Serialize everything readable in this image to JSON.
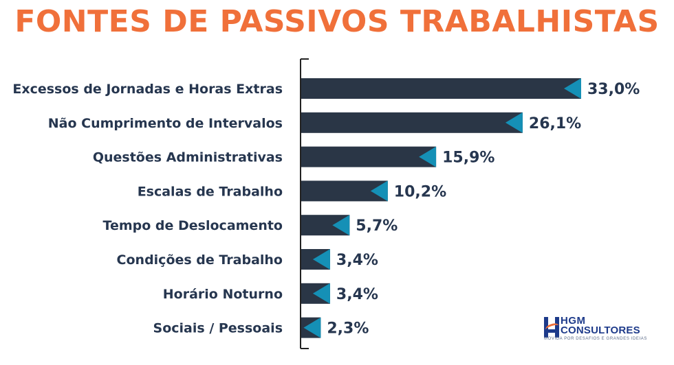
{
  "chart_data": {
    "type": "bar",
    "orientation": "horizontal",
    "title": "FONTES DE PASSIVOS TRABALHISTAS",
    "categories": [
      "Excessos de Jornadas e Horas Extras",
      "Não Cumprimento de Intervalos",
      "Questões Administrativas",
      "Escalas de Trabalho",
      "Tempo de Deslocamento",
      "Condições de Trabalho",
      "Horário Noturno",
      "Sociais / Pessoais"
    ],
    "values": [
      33.0,
      26.1,
      15.9,
      10.2,
      5.7,
      3.4,
      3.4,
      2.3
    ],
    "value_labels": [
      "33,0%",
      "26,1%",
      "15,9%",
      "10,2%",
      "5,7%",
      "3,4%",
      "3,4%",
      "2,3%"
    ],
    "xlim": [
      0,
      33.0
    ],
    "grid": false,
    "legend": "none",
    "colors": {
      "bar": "#2a3646",
      "marker": "#1590b6",
      "title": "#f0703a",
      "text": "#26364f"
    }
  },
  "logo": {
    "line1": "HGM",
    "line2": "CONSULTORES",
    "tagline": "MOVIDA POR DESAFIOS E GRANDES IDEIAS"
  }
}
